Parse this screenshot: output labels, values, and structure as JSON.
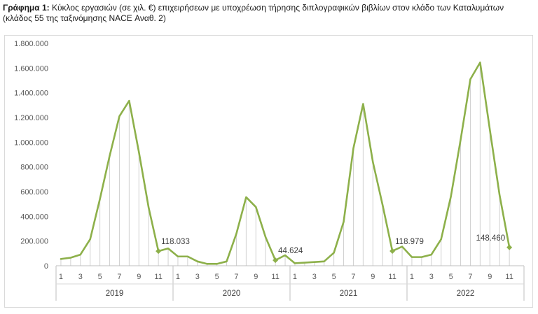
{
  "caption": {
    "prefix": "Γράφημα 1:",
    "text": " Κύκλος εργασιών (σε χιλ. €) επιχειρήσεων με υποχρέωση τήρησης διπλογραφικών βιβλίων στον κλάδο των Καταλυμάτων (κλάδος 55 της ταξινόμησης NACE Αναθ. 2)"
  },
  "chart_data": {
    "type": "line",
    "title": "Κύκλος εργασιών (σε χιλ. €) επιχειρήσεων με υποχρέωση τήρησης διπλογραφικών βιβλίων στον κλάδο των Καταλυμάτων (κλάδος 55 της ταξινόμησης NACE Αναθ. 2)",
    "ylim": [
      0,
      1800000
    ],
    "yticks": [
      0,
      200000,
      400000,
      600000,
      800000,
      1000000,
      1200000,
      1400000,
      1600000,
      1800000
    ],
    "ytick_labels": [
      "0",
      "200.000",
      "400.000",
      "600.000",
      "800.000",
      "1.000.000",
      "1.200.000",
      "1.400.000",
      "1.600.000",
      "1.800.000"
    ],
    "years": [
      "2019",
      "2020",
      "2021",
      "2022"
    ],
    "month_tick_labels": [
      "1",
      "",
      "3",
      "",
      "5",
      "",
      "7",
      "",
      "9",
      "",
      "11",
      ""
    ],
    "grid": "vertical drop lines",
    "series_color": "#8db04a",
    "values": [
      55000,
      65000,
      90000,
      215000,
      540000,
      890000,
      1210000,
      1335000,
      920000,
      470000,
      118033,
      140000,
      75000,
      75000,
      35000,
      15000,
      15000,
      35000,
      260000,
      555000,
      475000,
      230000,
      44624,
      85000,
      20000,
      25000,
      30000,
      35000,
      105000,
      355000,
      950000,
      1310000,
      840000,
      490000,
      118979,
      155000,
      70000,
      70000,
      90000,
      215000,
      560000,
      1020000,
      1510000,
      1645000,
      1100000,
      570000,
      148460,
      null
    ],
    "annotations": [
      {
        "index": 10,
        "label": "118.033"
      },
      {
        "index": 22,
        "label": "44.624"
      },
      {
        "index": 34,
        "label": "118.979"
      },
      {
        "index": 46,
        "label": "148.460"
      }
    ]
  }
}
